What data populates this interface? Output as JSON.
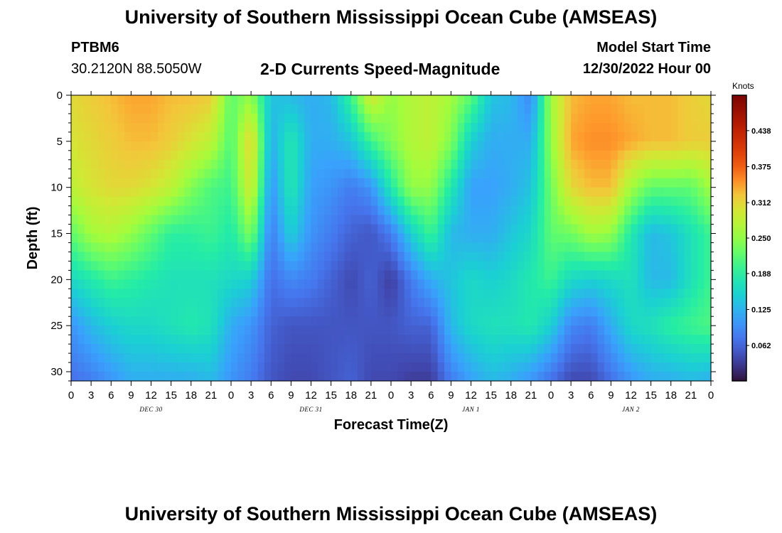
{
  "header": {
    "title": "University of Southern Mississippi Ocean Cube (AMSEAS)",
    "station_id": "PTBM6",
    "station_coords": "30.2120N  88.5050W",
    "chart_title": "2-D Currents Speed-Magnitude",
    "model_start_label": "Model Start Time",
    "model_start_value": "12/30/2022 Hour 00"
  },
  "footer": {
    "title": "University of Southern Mississippi Ocean Cube (AMSEAS)"
  },
  "chart_data": {
    "type": "heatmap",
    "title": "2-D Currents Speed-Magnitude",
    "xlabel": "Forecast Time(Z)",
    "ylabel": "Depth (ft)",
    "x_tick_labels": [
      "0",
      "3",
      "6",
      "9",
      "12",
      "15",
      "18",
      "21",
      "0",
      "3",
      "6",
      "9",
      "12",
      "15",
      "18",
      "21",
      "0",
      "3",
      "6",
      "9",
      "12",
      "15",
      "18",
      "21",
      "0",
      "3",
      "6",
      "9",
      "12",
      "15",
      "18",
      "21",
      "0"
    ],
    "x_date_labels": [
      {
        "text": "DEC 30",
        "hour": 12
      },
      {
        "text": "DEC 31",
        "hour": 36
      },
      {
        "text": "JAN 1",
        "hour": 60
      },
      {
        "text": "JAN 2",
        "hour": 84
      }
    ],
    "x_range_hours": [
      0,
      96
    ],
    "y_ticks": [
      0,
      5,
      10,
      15,
      20,
      25,
      30
    ],
    "y_range": [
      0,
      31
    ],
    "y_inverted": true,
    "colorbar": {
      "unit": "Knots",
      "ticks": [
        "0.438",
        "0.375",
        "0.312",
        "0.250",
        "0.188",
        "0.125",
        "0.062"
      ],
      "tick_values": [
        0.438,
        0.375,
        0.312,
        0.25,
        0.188,
        0.125,
        0.062
      ],
      "range": [
        0.0,
        0.5
      ]
    },
    "grid_hours": [
      0,
      3,
      6,
      9,
      12,
      15,
      18,
      21,
      24,
      27,
      30,
      33,
      36,
      39,
      42,
      45,
      48,
      51,
      54,
      57,
      60,
      63,
      66,
      69,
      72,
      75,
      78,
      81,
      84,
      87,
      90,
      93,
      96
    ],
    "grid_depths": [
      0,
      5,
      10,
      15,
      20,
      25,
      31
    ],
    "values": [
      [
        0.31,
        0.3,
        0.28,
        0.22,
        0.16,
        0.1,
        0.07
      ],
      [
        0.32,
        0.31,
        0.3,
        0.26,
        0.18,
        0.13,
        0.08
      ],
      [
        0.33,
        0.32,
        0.31,
        0.27,
        0.2,
        0.15,
        0.1
      ],
      [
        0.34,
        0.33,
        0.31,
        0.25,
        0.19,
        0.16,
        0.12
      ],
      [
        0.34,
        0.33,
        0.3,
        0.22,
        0.18,
        0.16,
        0.12
      ],
      [
        0.33,
        0.32,
        0.28,
        0.19,
        0.17,
        0.17,
        0.12
      ],
      [
        0.33,
        0.3,
        0.24,
        0.19,
        0.17,
        0.18,
        0.12
      ],
      [
        0.32,
        0.28,
        0.21,
        0.2,
        0.17,
        0.17,
        0.13
      ],
      [
        0.22,
        0.21,
        0.2,
        0.18,
        0.16,
        0.12,
        0.1
      ],
      [
        0.25,
        0.32,
        0.3,
        0.24,
        0.15,
        0.1,
        0.08
      ],
      [
        0.14,
        0.12,
        0.1,
        0.08,
        0.07,
        0.06,
        0.05
      ],
      [
        0.13,
        0.18,
        0.18,
        0.15,
        0.09,
        0.05,
        0.04
      ],
      [
        0.12,
        0.12,
        0.11,
        0.1,
        0.08,
        0.05,
        0.04
      ],
      [
        0.13,
        0.12,
        0.1,
        0.08,
        0.06,
        0.05,
        0.05
      ],
      [
        0.2,
        0.14,
        0.08,
        0.06,
        0.04,
        0.05,
        0.06
      ],
      [
        0.3,
        0.2,
        0.1,
        0.05,
        0.06,
        0.05,
        0.04
      ],
      [
        0.25,
        0.24,
        0.18,
        0.08,
        0.03,
        0.05,
        0.04
      ],
      [
        0.27,
        0.27,
        0.25,
        0.15,
        0.08,
        0.06,
        0.03
      ],
      [
        0.28,
        0.28,
        0.25,
        0.2,
        0.12,
        0.06,
        0.03
      ],
      [
        0.26,
        0.24,
        0.18,
        0.13,
        0.14,
        0.13,
        0.08
      ],
      [
        0.22,
        0.15,
        0.11,
        0.12,
        0.16,
        0.16,
        0.11
      ],
      [
        0.14,
        0.12,
        0.11,
        0.12,
        0.15,
        0.17,
        0.13
      ],
      [
        0.13,
        0.12,
        0.12,
        0.14,
        0.16,
        0.17,
        0.12
      ],
      [
        0.09,
        0.12,
        0.14,
        0.16,
        0.18,
        0.18,
        0.1
      ],
      [
        0.26,
        0.25,
        0.23,
        0.22,
        0.2,
        0.15,
        0.07
      ],
      [
        0.33,
        0.34,
        0.31,
        0.23,
        0.16,
        0.09,
        0.04
      ],
      [
        0.34,
        0.35,
        0.33,
        0.26,
        0.15,
        0.08,
        0.04
      ],
      [
        0.34,
        0.35,
        0.33,
        0.25,
        0.16,
        0.12,
        0.07
      ],
      [
        0.33,
        0.34,
        0.26,
        0.18,
        0.17,
        0.16,
        0.1
      ],
      [
        0.33,
        0.33,
        0.22,
        0.13,
        0.13,
        0.17,
        0.12
      ],
      [
        0.33,
        0.33,
        0.22,
        0.14,
        0.13,
        0.19,
        0.12
      ],
      [
        0.32,
        0.32,
        0.22,
        0.17,
        0.17,
        0.2,
        0.13
      ],
      [
        0.31,
        0.32,
        0.26,
        0.2,
        0.2,
        0.21,
        0.12
      ]
    ]
  }
}
